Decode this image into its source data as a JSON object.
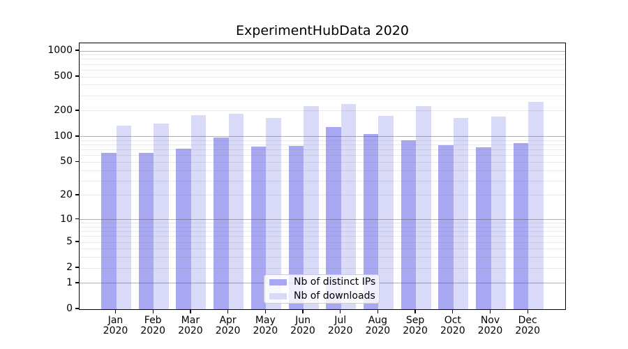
{
  "title": "ExperimentHubData 2020",
  "colors": {
    "distinct_ips": "#a8a8f2",
    "downloads": "#d9d9f8",
    "spine": "#000000",
    "grid_major": "rgba(80,80,80,0.45)",
    "grid_minor": "rgba(128,128,128,0.18)"
  },
  "chart_data": {
    "type": "bar",
    "title": "ExperimentHubData 2020",
    "categories": [
      "Jan",
      "Feb",
      "Mar",
      "Apr",
      "May",
      "Jun",
      "Jul",
      "Aug",
      "Sep",
      "Oct",
      "Nov",
      "Dec"
    ],
    "category_year": "2020",
    "series": [
      {
        "name": "Nb of distinct IPs",
        "color": "#a8a8f2",
        "values": [
          64,
          64,
          73,
          97,
          77,
          78,
          131,
          107,
          90,
          79,
          75,
          84
        ]
      },
      {
        "name": "Nb of downloads",
        "color": "#d9d9f8",
        "values": [
          136,
          142,
          178,
          186,
          165,
          230,
          240,
          174,
          228,
          165,
          171,
          256
        ]
      }
    ],
    "yscale": "log1p",
    "ylim": [
      0,
      1000
    ],
    "yticks": [
      0,
      1,
      2,
      5,
      10,
      20,
      50,
      100,
      200,
      500,
      1000
    ],
    "grid_major_at": [
      1,
      10,
      100,
      1000
    ],
    "grid": "horizontal, minor log decades",
    "legend_position": "lower center",
    "xlabel": "",
    "ylabel": ""
  }
}
